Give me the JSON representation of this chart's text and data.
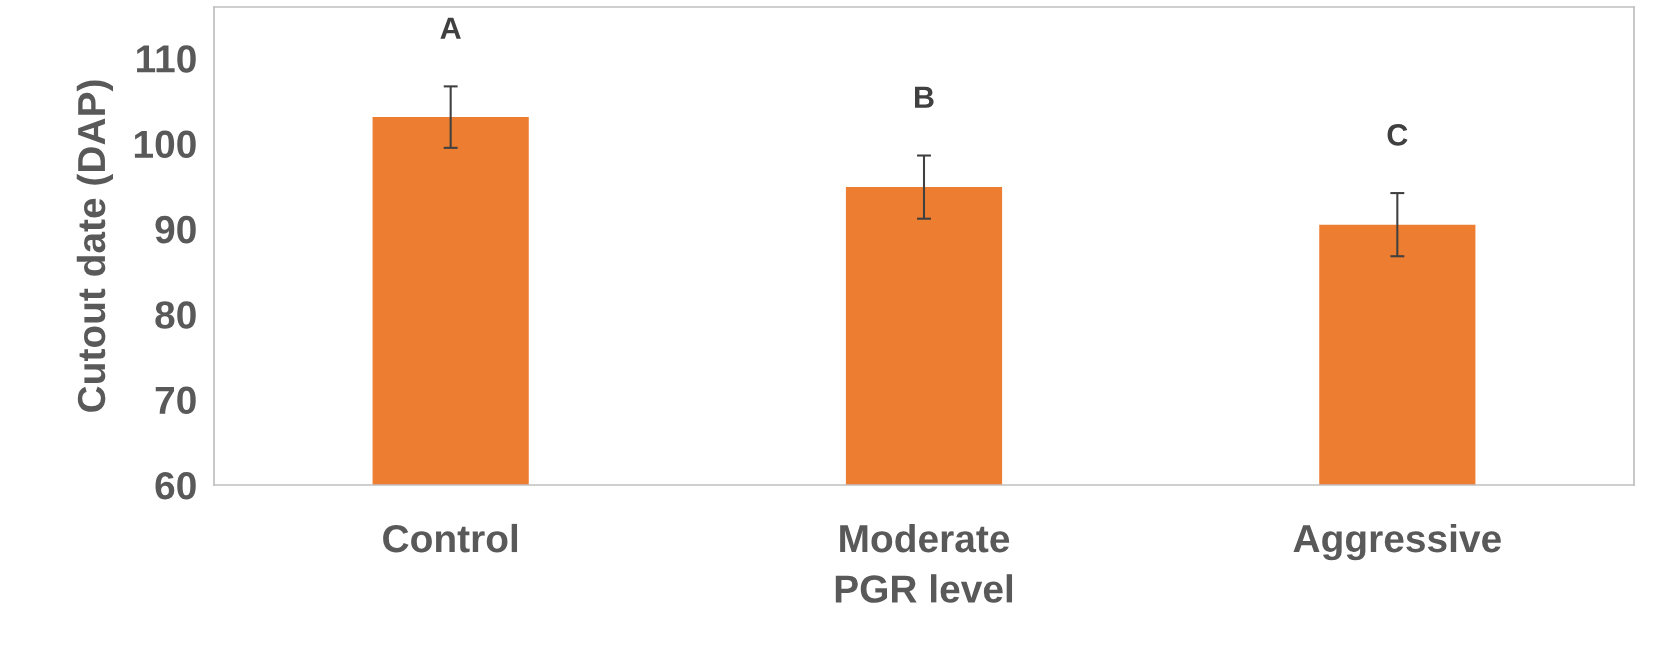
{
  "chart_data": {
    "type": "bar",
    "xlabel": "PGR level",
    "ylabel": "Cutout date (DAP)",
    "categories": [
      "Control",
      "Moderate",
      "Aggressive"
    ],
    "values": [
      103.1,
      94.9,
      90.5
    ],
    "errors": [
      3.6,
      3.7,
      3.7
    ],
    "color": "#ed7d31",
    "ylim": [
      60,
      116
    ],
    "yticks": [
      60,
      70,
      80,
      90,
      100,
      110
    ],
    "grid": false,
    "annotations": [
      "A",
      "B",
      "C"
    ]
  }
}
